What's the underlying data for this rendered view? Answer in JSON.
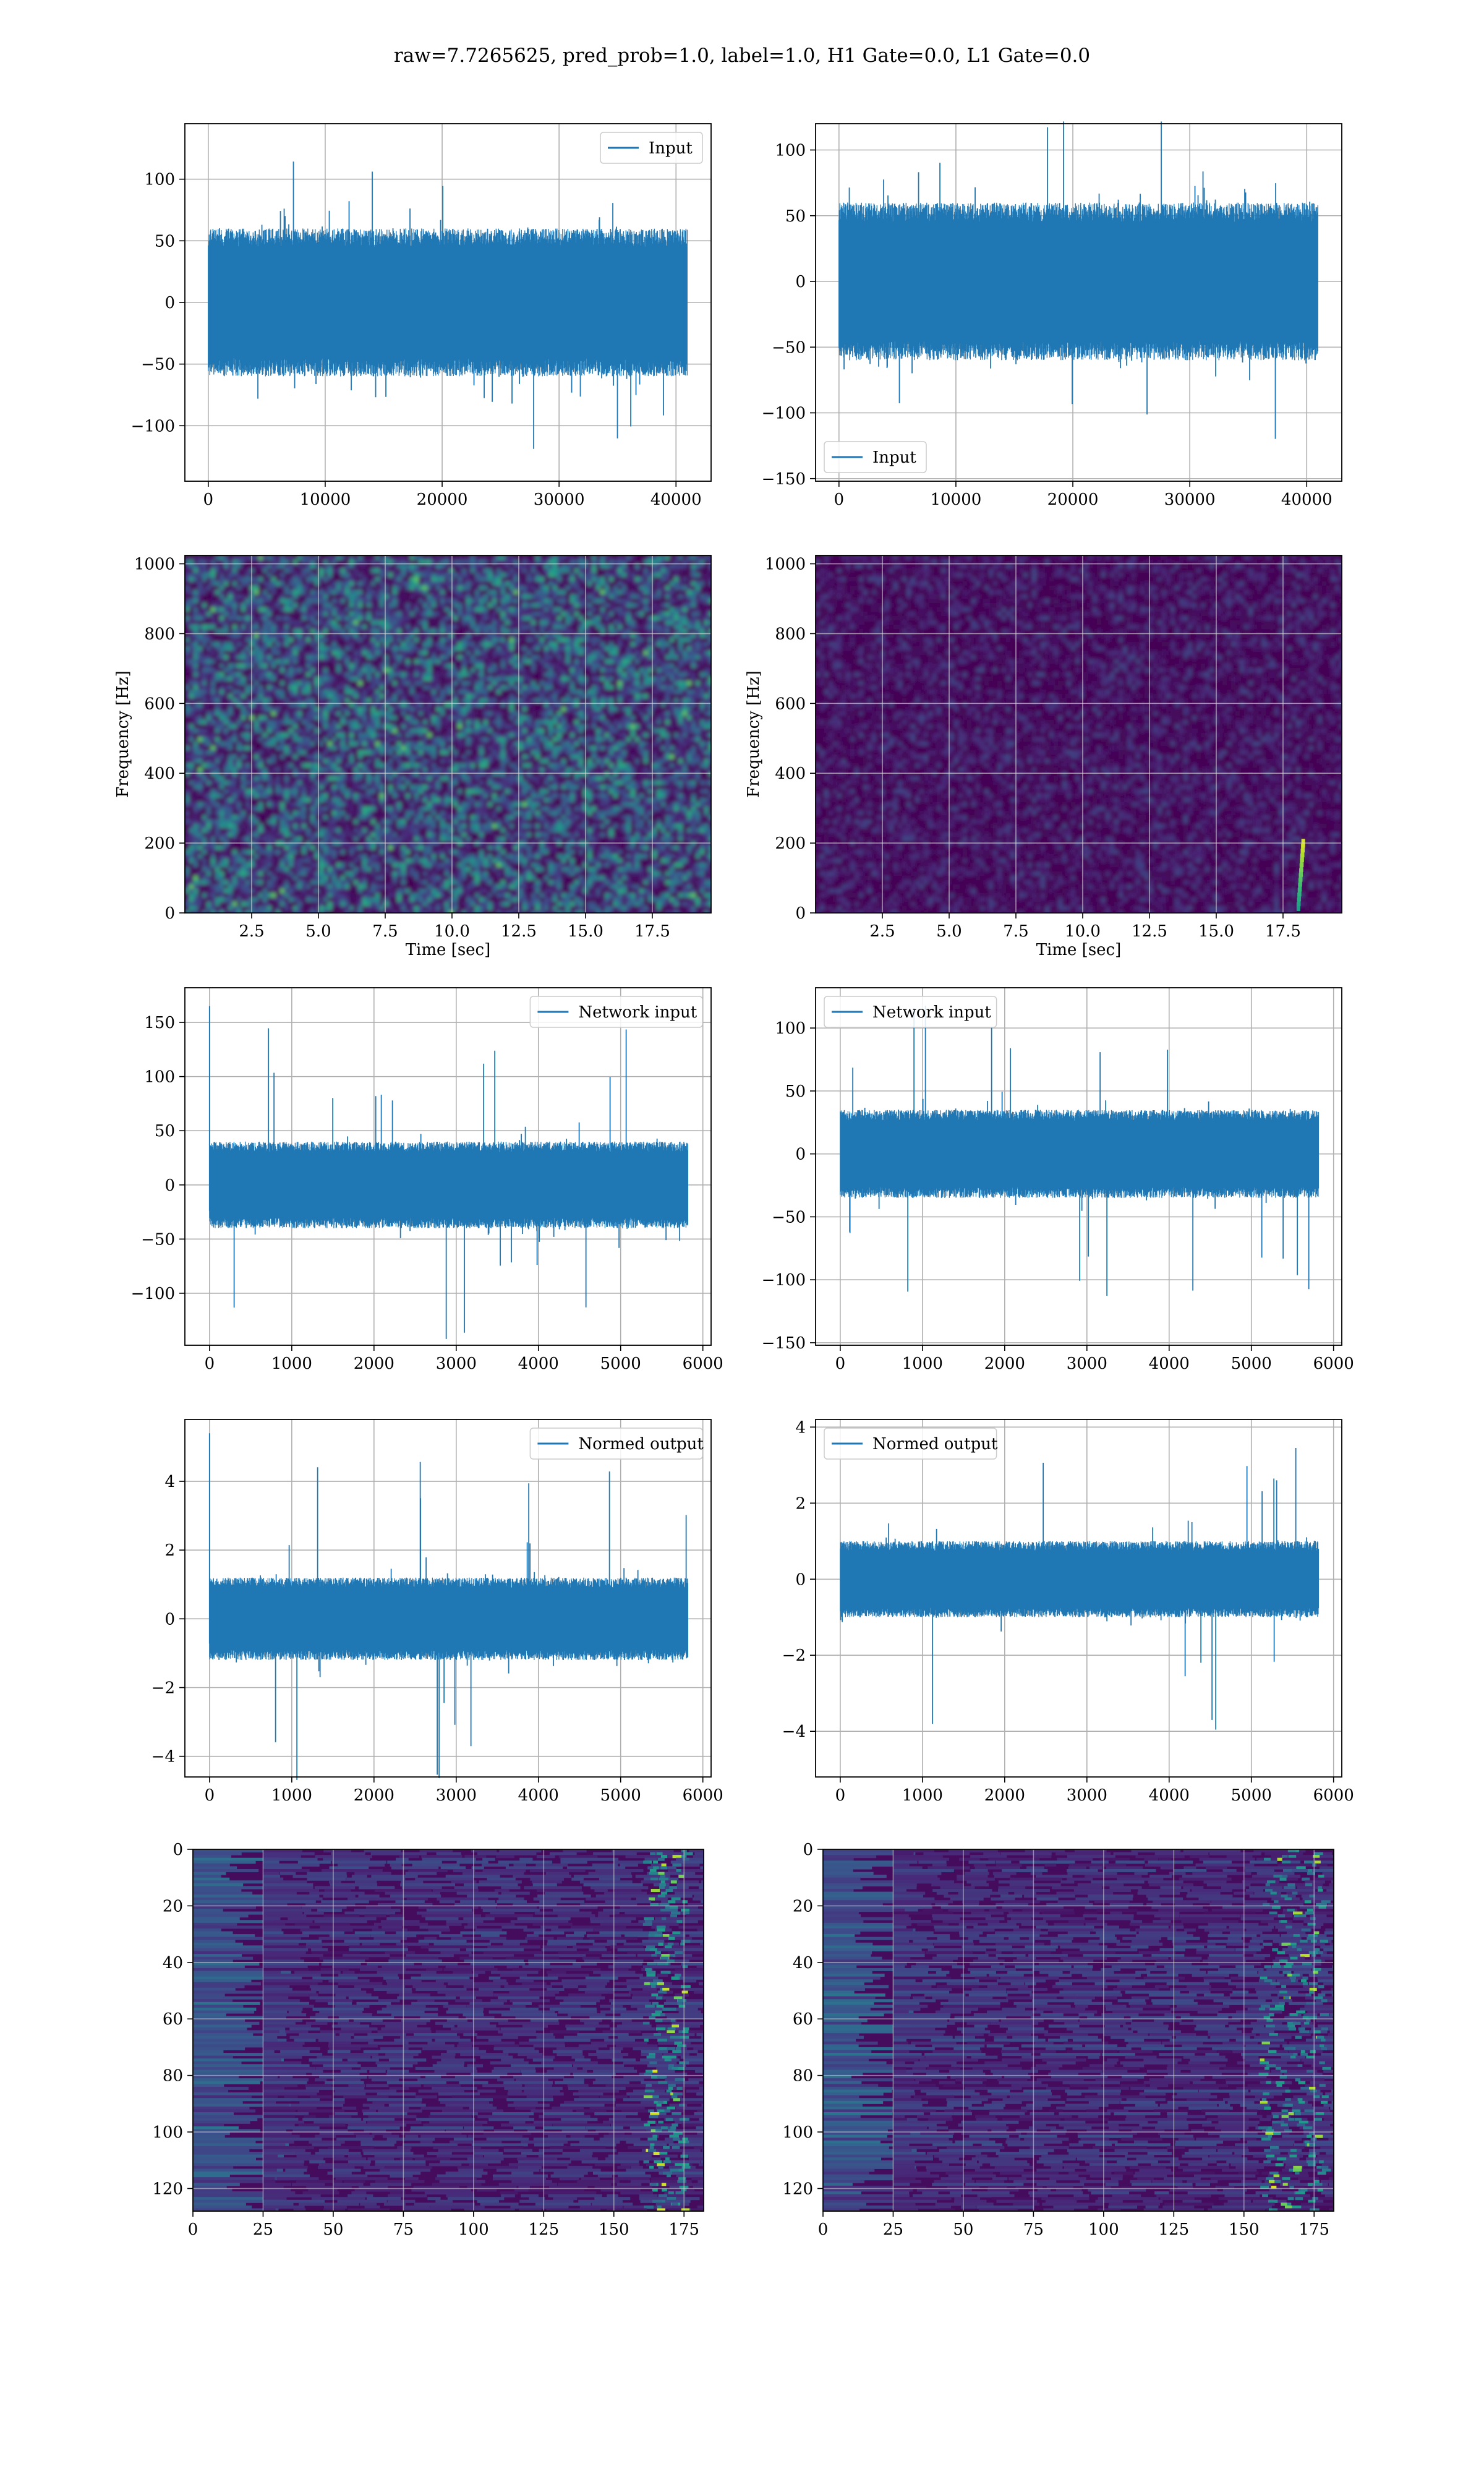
{
  "figure": {
    "suptitle": "raw=7.7265625, pred_prob=1.0, label=1.0, H1 Gate=0.0, L1 Gate=0.0"
  },
  "colors": {
    "line": "#1f77b4",
    "grid": "#b0b0b0",
    "spines": "#000000",
    "colormap": "viridis"
  },
  "chart_data": [
    {
      "id": "input_h1",
      "type": "line",
      "series": [
        {
          "name": "Input"
        }
      ],
      "legend_loc": "upper right",
      "xlim": [
        -2000,
        43000
      ],
      "ylim": [
        -145,
        145
      ],
      "xticks": [
        0,
        10000,
        20000,
        30000,
        40000
      ],
      "yticks": [
        -100,
        -50,
        0,
        50,
        100
      ],
      "signal": {
        "x_end": 40960,
        "band": 60,
        "extreme": 135
      }
    },
    {
      "id": "input_l1",
      "type": "line",
      "series": [
        {
          "name": "Input"
        }
      ],
      "legend_loc": "lower left",
      "xlim": [
        -2000,
        43000
      ],
      "ylim": [
        -152,
        120
      ],
      "xticks": [
        0,
        10000,
        20000,
        30000,
        40000
      ],
      "yticks": [
        -150,
        -100,
        -50,
        0,
        50,
        100
      ],
      "signal": {
        "x_end": 40960,
        "band": 60,
        "extreme": 138
      }
    },
    {
      "id": "spectrogram_h1",
      "type": "heatmap",
      "xlabel": "Time [sec]",
      "ylabel": "Frequency [Hz]",
      "xlim": [
        0,
        19.7
      ],
      "ylim": [
        0,
        1024
      ],
      "xticks": [
        "2.5",
        "5.0",
        "7.5",
        "10.0",
        "12.5",
        "15.0",
        "17.5"
      ],
      "xtick_vals": [
        2.5,
        5,
        7.5,
        10,
        12.5,
        15,
        17.5
      ],
      "yticks": [
        0,
        200,
        400,
        600,
        800,
        1000
      ],
      "intensity": "high"
    },
    {
      "id": "spectrogram_l1",
      "type": "heatmap",
      "xlabel": "Time [sec]",
      "ylabel": "Frequency [Hz]",
      "xlim": [
        0,
        19.7
      ],
      "ylim": [
        0,
        1024
      ],
      "xticks": [
        "2.5",
        "5.0",
        "7.5",
        "10.0",
        "12.5",
        "15.0",
        "17.5"
      ],
      "xtick_vals": [
        2.5,
        5,
        7.5,
        10,
        12.5,
        15,
        17.5
      ],
      "yticks": [
        0,
        200,
        400,
        600,
        800,
        1000
      ],
      "intensity": "low",
      "chirp_at_sec": 18.1
    },
    {
      "id": "network_input_h1",
      "type": "line",
      "series": [
        {
          "name": "Network input"
        }
      ],
      "legend_loc": "upper right",
      "xlim": [
        -300,
        6100
      ],
      "ylim": [
        -148,
        182
      ],
      "xticks": [
        0,
        1000,
        2000,
        3000,
        4000,
        5000,
        6000
      ],
      "yticks": [
        -100,
        -50,
        0,
        50,
        100,
        150
      ],
      "signal": {
        "x_end": 5820,
        "band": 40,
        "extreme": 165
      }
    },
    {
      "id": "network_input_l1",
      "type": "line",
      "series": [
        {
          "name": "Network input"
        }
      ],
      "legend_loc": "upper left",
      "xlim": [
        -300,
        6100
      ],
      "ylim": [
        -152,
        132
      ],
      "xticks": [
        0,
        1000,
        2000,
        3000,
        4000,
        5000,
        6000
      ],
      "yticks": [
        -150,
        -100,
        -50,
        0,
        50,
        100
      ],
      "signal": {
        "x_end": 5820,
        "band": 35,
        "extreme": 138
      }
    },
    {
      "id": "normed_output_h1",
      "type": "line",
      "series": [
        {
          "name": "Normed output"
        }
      ],
      "legend_loc": "upper right",
      "xlim": [
        -300,
        6100
      ],
      "ylim": [
        -4.6,
        5.8
      ],
      "xticks": [
        0,
        1000,
        2000,
        3000,
        4000,
        5000,
        6000
      ],
      "yticks": [
        -4,
        -2,
        0,
        2,
        4
      ],
      "signal": {
        "x_end": 5820,
        "band": 1.2,
        "extreme": 5.4
      }
    },
    {
      "id": "normed_output_l1",
      "type": "line",
      "series": [
        {
          "name": "Normed output"
        }
      ],
      "legend_loc": "upper left",
      "xlim": [
        -300,
        6100
      ],
      "ylim": [
        -5.2,
        4.2
      ],
      "xticks": [
        0,
        1000,
        2000,
        3000,
        4000,
        5000,
        6000
      ],
      "yticks": [
        -4,
        -2,
        0,
        2,
        4
      ],
      "signal": {
        "x_end": 5820,
        "band": 1.0,
        "extreme": 4.8
      }
    },
    {
      "id": "features_h1",
      "type": "heatmap",
      "xlim": [
        0,
        182
      ],
      "ylim": [
        128,
        0
      ],
      "xticks": [
        0,
        25,
        50,
        75,
        100,
        125,
        150,
        175
      ],
      "yticks": [
        0,
        20,
        40,
        60,
        80,
        100,
        120
      ],
      "hot_columns": [
        160,
        175
      ]
    },
    {
      "id": "features_l1",
      "type": "heatmap",
      "xlim": [
        0,
        182
      ],
      "ylim": [
        128,
        0
      ],
      "xticks": [
        0,
        25,
        50,
        75,
        100,
        125,
        150,
        175
      ],
      "yticks": [
        0,
        20,
        40,
        60,
        80,
        100,
        120
      ],
      "hot_columns": [
        155,
        178
      ]
    }
  ]
}
